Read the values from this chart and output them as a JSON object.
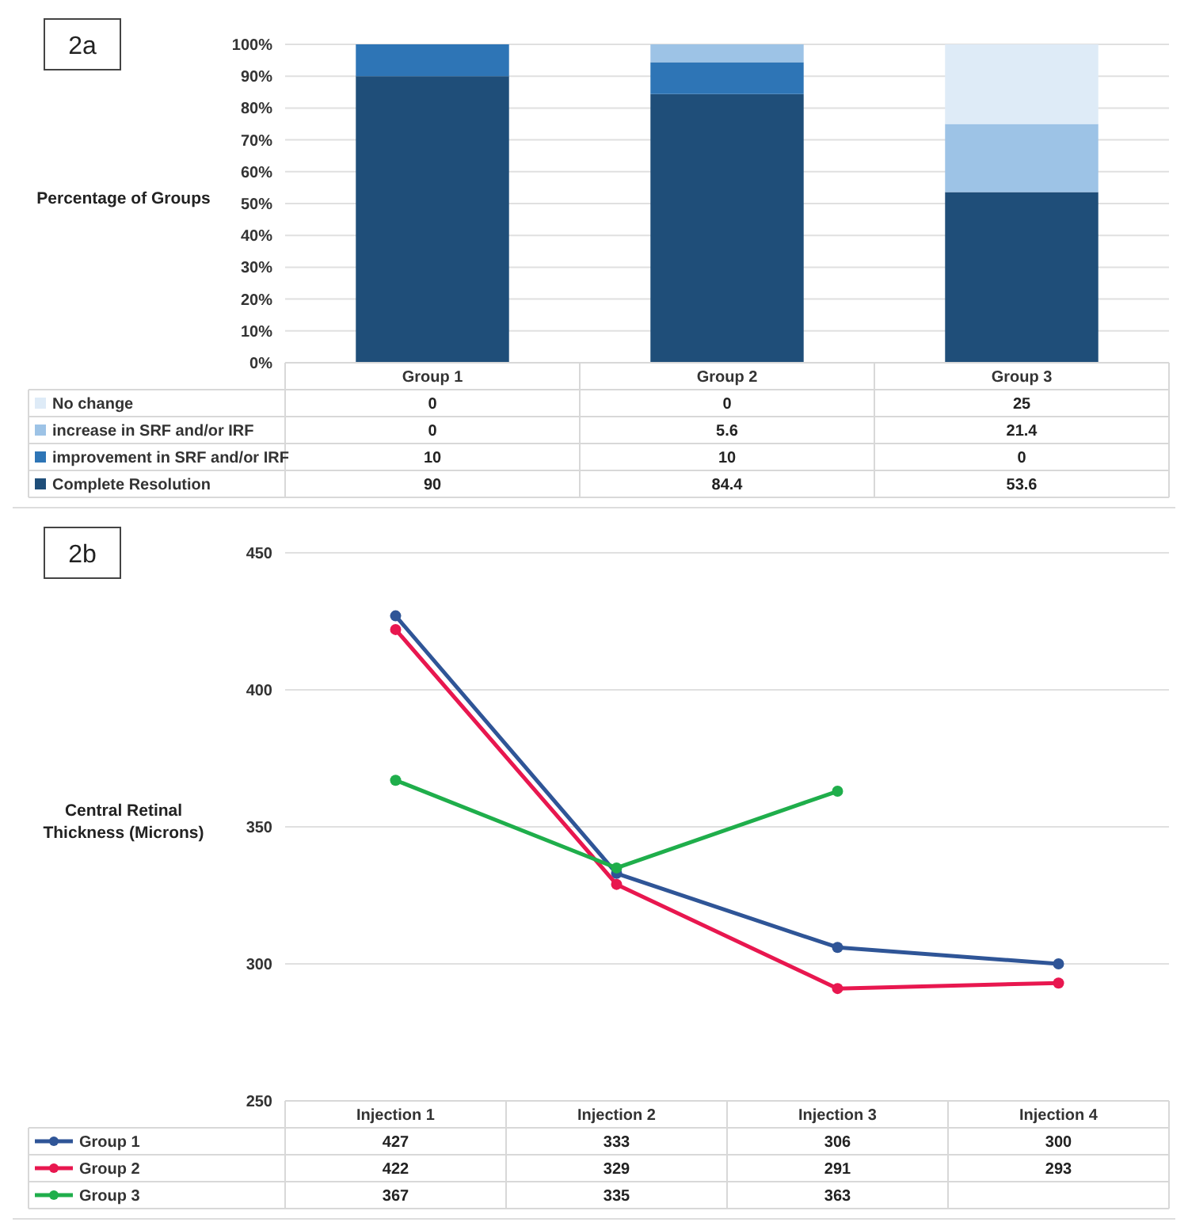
{
  "chart_data": [
    {
      "type": "bar",
      "title": "2a",
      "ylabel": "Percentage of Groups",
      "stacked": true,
      "categories": [
        "Group 1",
        "Group 2",
        "Group 3"
      ],
      "series": [
        {
          "name": "Complete Resolution",
          "color": "#1f4e79",
          "values": [
            90,
            84.4,
            53.6
          ]
        },
        {
          "name": "improvement in SRF and/or IRF",
          "color": "#2e75b6",
          "values": [
            10,
            10,
            0
          ]
        },
        {
          "name": "increase in SRF and/or IRF",
          "color": "#9dc3e6",
          "values": [
            0,
            5.6,
            21.4
          ]
        },
        {
          "name": "No change",
          "color": "#deebf7",
          "values": [
            0,
            0,
            25
          ]
        }
      ],
      "ylim": [
        0,
        100
      ],
      "yticks": [
        {
          "value": 0,
          "label": "0%"
        },
        {
          "value": 10,
          "label": "10%"
        },
        {
          "value": 20,
          "label": "20%"
        },
        {
          "value": 30,
          "label": "30%"
        },
        {
          "value": 40,
          "label": "40%"
        },
        {
          "value": 50,
          "label": "50%"
        },
        {
          "value": 60,
          "label": "60%"
        },
        {
          "value": 70,
          "label": "70%"
        },
        {
          "value": 80,
          "label": "80%"
        },
        {
          "value": 90,
          "label": "90%"
        },
        {
          "value": 100,
          "label": "100%"
        }
      ],
      "grid": "y",
      "legend": "bottom",
      "data_labels": true
    },
    {
      "type": "line",
      "title": "2b",
      "ylabel": "Central Retinal Thickness (Microns)",
      "categories": [
        "Injection 1",
        "Injection 2",
        "Injection 3",
        "Injection 4"
      ],
      "series": [
        {
          "name": "Group 1",
          "color": "#2f5597",
          "values": [
            427,
            333,
            306,
            300
          ]
        },
        {
          "name": "Group 2",
          "color": "#e8174f",
          "values": [
            422,
            329,
            291,
            293
          ]
        },
        {
          "name": "Group 3",
          "color": "#1fae4b",
          "values": [
            367,
            335,
            363,
            null
          ]
        }
      ],
      "ylim": [
        250,
        450
      ],
      "yticks": [
        250,
        300,
        350,
        400,
        450
      ],
      "grid": "y",
      "legend": "bottom",
      "marker": "circle",
      "line_style": "solid",
      "data_labels": true
    }
  ]
}
